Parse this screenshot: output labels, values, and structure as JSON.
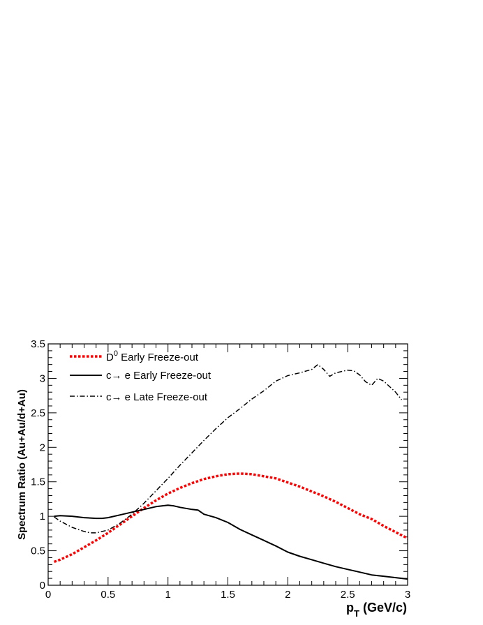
{
  "chart_data": {
    "type": "line",
    "xlabel": "p",
    "xlabel_sub": "T",
    "xlabel_units": " (GeV/c)",
    "ylabel": "Spectrum Ratio (Au+Au/d+Au)",
    "xlim": [
      0,
      3
    ],
    "ylim": [
      0,
      3.5
    ],
    "xticks": [
      0,
      0.5,
      1,
      1.5,
      2,
      2.5,
      3
    ],
    "xtick_labels": [
      "0",
      "0.5",
      "1",
      "1.5",
      "2",
      "2.5",
      "3"
    ],
    "yticks": [
      0,
      0.5,
      1,
      1.5,
      2,
      2.5,
      3,
      3.5
    ],
    "ytick_labels": [
      "0",
      "0.5",
      "1",
      "1.5",
      "2",
      "2.5",
      "3",
      "3.5"
    ],
    "grid": false,
    "legend_position": "top-left",
    "series": [
      {
        "name": "D",
        "name_sup": "0",
        "name_rest": " Early Freeze-out",
        "color": "#ff0000",
        "style": "dotted",
        "x": [
          0.05,
          0.1,
          0.2,
          0.3,
          0.4,
          0.5,
          0.6,
          0.7,
          0.8,
          0.9,
          1.0,
          1.1,
          1.2,
          1.3,
          1.4,
          1.5,
          1.6,
          1.7,
          1.8,
          1.9,
          2.0,
          2.1,
          2.2,
          2.3,
          2.4,
          2.5,
          2.6,
          2.7,
          2.8,
          2.9,
          3.0
        ],
        "y": [
          0.34,
          0.37,
          0.45,
          0.55,
          0.65,
          0.76,
          0.88,
          1.0,
          1.12,
          1.23,
          1.33,
          1.41,
          1.48,
          1.54,
          1.58,
          1.61,
          1.62,
          1.61,
          1.58,
          1.55,
          1.49,
          1.43,
          1.36,
          1.29,
          1.21,
          1.12,
          1.03,
          0.96,
          0.86,
          0.77,
          0.68
        ]
      },
      {
        "name": "c",
        "name_rest": " e Early Freeze-out",
        "color": "#000000",
        "style": "solid",
        "x": [
          0.05,
          0.1,
          0.2,
          0.3,
          0.4,
          0.45,
          0.5,
          0.6,
          0.7,
          0.8,
          0.9,
          1.0,
          1.05,
          1.1,
          1.2,
          1.25,
          1.3,
          1.4,
          1.5,
          1.6,
          1.7,
          1.8,
          1.9,
          2.0,
          2.1,
          2.2,
          2.3,
          2.4,
          2.5,
          2.6,
          2.7,
          2.8,
          2.9,
          2.95,
          3.0
        ],
        "y": [
          1.0,
          1.01,
          1.0,
          0.98,
          0.97,
          0.97,
          0.98,
          1.02,
          1.06,
          1.1,
          1.14,
          1.16,
          1.15,
          1.13,
          1.1,
          1.09,
          1.03,
          0.98,
          0.91,
          0.81,
          0.73,
          0.65,
          0.57,
          0.48,
          0.42,
          0.37,
          0.32,
          0.27,
          0.23,
          0.19,
          0.15,
          0.13,
          0.11,
          0.1,
          0.09
        ]
      },
      {
        "name": "c",
        "name_rest": " e Late Freeze-out",
        "color": "#000000",
        "style": "dashdot",
        "x": [
          0.05,
          0.1,
          0.2,
          0.3,
          0.35,
          0.4,
          0.5,
          0.6,
          0.7,
          0.8,
          0.9,
          1.0,
          1.1,
          1.2,
          1.3,
          1.4,
          1.5,
          1.6,
          1.7,
          1.8,
          1.9,
          2.0,
          2.1,
          2.2,
          2.25,
          2.3,
          2.35,
          2.4,
          2.5,
          2.55,
          2.6,
          2.65,
          2.7,
          2.75,
          2.8,
          2.9,
          2.95
        ],
        "y": [
          0.99,
          0.93,
          0.84,
          0.78,
          0.76,
          0.76,
          0.8,
          0.9,
          1.03,
          1.19,
          1.37,
          1.55,
          1.74,
          1.92,
          2.1,
          2.27,
          2.43,
          2.56,
          2.7,
          2.82,
          2.96,
          3.04,
          3.08,
          3.13,
          3.2,
          3.13,
          3.03,
          3.08,
          3.12,
          3.11,
          3.05,
          2.95,
          2.9,
          3.0,
          2.96,
          2.8,
          2.69
        ]
      }
    ]
  }
}
